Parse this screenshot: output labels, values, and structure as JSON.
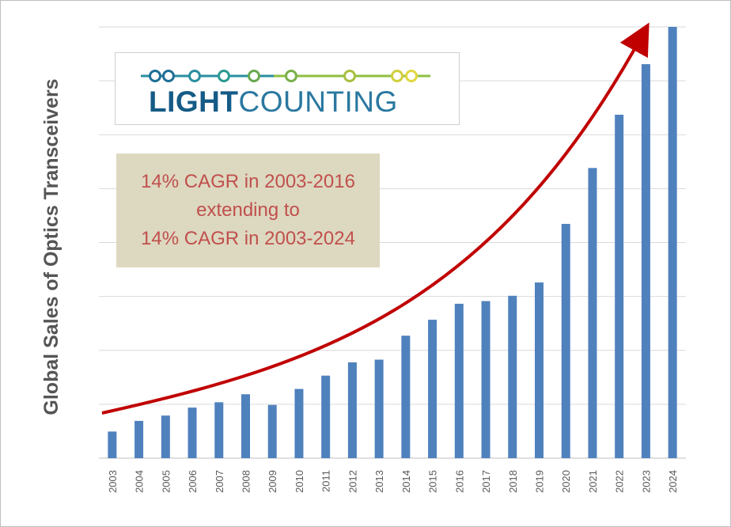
{
  "brand": {
    "logo_word_1": "LIGHT",
    "logo_word_2": "COUNTING",
    "logo_colors": {
      "dark_blue": "#155b86",
      "teal": "#2a8fa0",
      "green": "#6aa84f",
      "yellow": "#e0d840"
    }
  },
  "annotation": {
    "line1": "14% CAGR in 2003-2016",
    "line2": "extending to",
    "line3": "14% CAGR in 2003-2024",
    "text_color": "#c0504d",
    "background": "#ddd8c0"
  },
  "chart_data": {
    "type": "bar",
    "title": "",
    "xlabel": "",
    "ylabel": "Global Sales of Optics Transceivers",
    "categories": [
      "2003",
      "2004",
      "2005",
      "2006",
      "2007",
      "2008",
      "2009",
      "2010",
      "2011",
      "2012",
      "2013",
      "2014",
      "2015",
      "2016",
      "2017",
      "2018",
      "2019",
      "2020",
      "2021",
      "2022",
      "2023",
      "2024"
    ],
    "values": [
      0.5,
      0.7,
      0.8,
      0.95,
      1.05,
      1.2,
      1.0,
      1.3,
      1.55,
      1.8,
      1.85,
      2.3,
      2.6,
      2.9,
      2.95,
      3.05,
      3.3,
      4.4,
      5.45,
      6.45,
      7.4,
      8.1
    ],
    "ylim": [
      0,
      8.1
    ],
    "y_tick_labels": "none",
    "grid": true,
    "legend": "none",
    "bar_color": "#4f81bd",
    "trend_color": "#c00000"
  }
}
